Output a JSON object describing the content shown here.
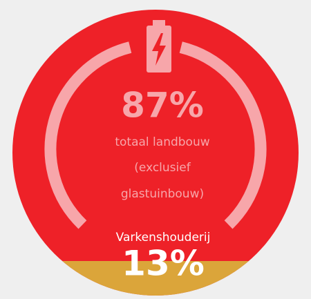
{
  "main": {
    "value": "87%",
    "label_lines": [
      "totaal landbouw",
      "(exclusief",
      "glastuinbouw)"
    ]
  },
  "segment": {
    "label": "Varkenshouderij",
    "value": "13%"
  }
}
